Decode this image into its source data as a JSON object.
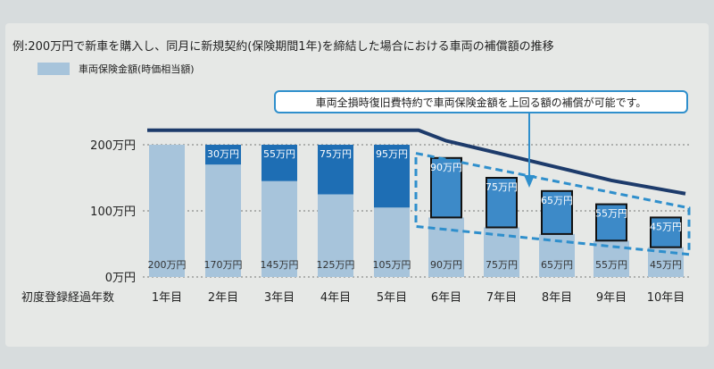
{
  "title": "例:200万円で新車を購入し、同月に新規契約(保険期間1年)を締結した場合における車両の補償額の推移",
  "legend": {
    "label": "車両保険金額(時価相当額)",
    "color": "#a7c4db"
  },
  "callout": "車両全損時復旧費特約で車両保険金額を上回る額の補償が可能です。",
  "colors": {
    "base_bar": "#a7c4db",
    "extra_dark": "#1e6eb4",
    "extra_special": "#3d8ac8",
    "line": "#1d3b6b",
    "callout_border": "#2f8fcc"
  },
  "chart_data": {
    "type": "bar",
    "categories": [
      "1年目",
      "2年目",
      "3年目",
      "4年目",
      "5年目",
      "6年目",
      "7年目",
      "8年目",
      "9年目",
      "10年目"
    ],
    "xlabel": "初度登録経過年数",
    "ylabel": "",
    "ylim": [
      0,
      200
    ],
    "y_ticks": [
      "0万円",
      "100万円",
      "200万円"
    ],
    "y_tick_values": [
      0,
      100,
      200
    ],
    "series": [
      {
        "name": "車両保険金額(時価相当額)",
        "values": [
          200,
          170,
          145,
          125,
          105,
          90,
          75,
          65,
          55,
          45
        ],
        "labels": [
          "200万円",
          "170万円",
          "145万円",
          "125万円",
          "105万円",
          "90万円",
          "75万円",
          "65万円",
          "55万円",
          "45万円"
        ]
      },
      {
        "values": [
          0,
          30,
          55,
          75,
          95,
          90,
          75,
          65,
          55,
          45
        ],
        "labels": [
          "",
          "30万円",
          "55万円",
          "75万円",
          "95万円",
          "90万円",
          "75万円",
          "65万円",
          "55万円",
          "45万円"
        ]
      }
    ],
    "compensation_line": [
      222,
      222,
      222,
      222,
      222,
      206,
      186,
      166,
      146,
      126
    ],
    "grid": "dotted",
    "legend": "top-left"
  }
}
